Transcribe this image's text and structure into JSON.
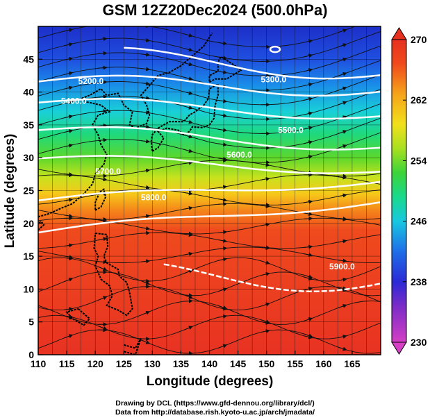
{
  "title": "GSM 12Z20Dec2024 (500.0hPa)",
  "x_axis": {
    "label": "Longitude (degrees)",
    "range": [
      110,
      170
    ],
    "ticks": [
      110,
      115,
      120,
      125,
      130,
      135,
      140,
      145,
      150,
      155,
      160,
      165
    ]
  },
  "y_axis": {
    "label": "Latitude  (degrees)",
    "range": [
      0,
      50
    ],
    "ticks": [
      0,
      5,
      10,
      15,
      20,
      25,
      30,
      35,
      40,
      45
    ]
  },
  "colorbar": {
    "range": [
      230,
      270
    ],
    "ticks": [
      230,
      238,
      246,
      254,
      262,
      270
    ],
    "colors": [
      "#d43fc4",
      "#7a2bc8",
      "#2a2ad6",
      "#1f6ee8",
      "#18c8e0",
      "#19d98c",
      "#3cd43a",
      "#a8e020",
      "#f2e01c",
      "#f5a41a",
      "#f04a1c",
      "#e63020"
    ]
  },
  "contours": [
    {
      "label": "5300.0",
      "lat": 41
    },
    {
      "label": "5200.0",
      "lat": 44
    },
    {
      "label": "5400.0",
      "lat": 37
    },
    {
      "label": "5500.0",
      "lat": 31
    },
    {
      "label": "5600.0",
      "lat": 28
    },
    {
      "label": "5700.0",
      "lat": 25
    },
    {
      "label": "5800.0",
      "lat": 20
    },
    {
      "label": "5900.0",
      "lat": 10
    }
  ],
  "credits": {
    "line1": "Drawing by DCL (https://www.gfd-dennou.org/library/dcl/)",
    "line2": "Data from http://database.rish.kyoto-u.ac.jp/arch/jmadata/"
  }
}
